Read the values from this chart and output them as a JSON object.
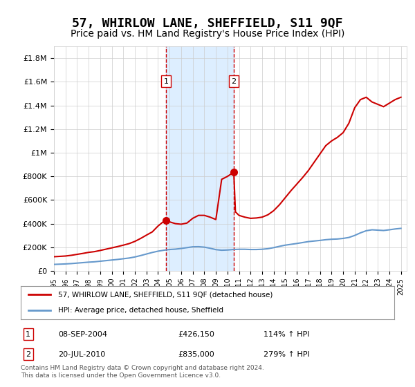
{
  "title": "57, WHIRLOW LANE, SHEFFIELD, S11 9QF",
  "subtitle": "Price paid vs. HM Land Registry's House Price Index (HPI)",
  "title_fontsize": 13,
  "subtitle_fontsize": 10,
  "x_start": 1995.0,
  "x_end": 2025.5,
  "y_min": 0,
  "y_max": 1900000,
  "y_ticks": [
    0,
    200000,
    400000,
    600000,
    800000,
    1000000,
    1200000,
    1400000,
    1600000,
    1800000
  ],
  "y_tick_labels": [
    "£0",
    "£200K",
    "£400K",
    "£600K",
    "£800K",
    "£1M",
    "£1.2M",
    "£1.4M",
    "£1.6M",
    "£1.8M"
  ],
  "x_ticks": [
    1995,
    1996,
    1997,
    1998,
    1999,
    2000,
    2001,
    2002,
    2003,
    2004,
    2005,
    2006,
    2007,
    2008,
    2009,
    2010,
    2011,
    2012,
    2013,
    2014,
    2015,
    2016,
    2017,
    2018,
    2019,
    2020,
    2021,
    2022,
    2023,
    2024,
    2025
  ],
  "sale1_x": 2004.69,
  "sale1_y": 426150,
  "sale1_label": "1",
  "sale1_date": "08-SEP-2004",
  "sale1_price": "£426,150",
  "sale1_hpi": "114% ↑ HPI",
  "sale2_x": 2010.55,
  "sale2_y": 835000,
  "sale2_label": "2",
  "sale2_date": "20-JUL-2010",
  "sale2_price": "£835,000",
  "sale2_hpi": "279% ↑ HPI",
  "line_color_red": "#cc0000",
  "line_color_blue": "#6699cc",
  "shade_color": "#ddeeff",
  "grid_color": "#cccccc",
  "background_color": "#ffffff",
  "legend_line1": "57, WHIRLOW LANE, SHEFFIELD, S11 9QF (detached house)",
  "legend_line2": "HPI: Average price, detached house, Sheffield",
  "footnote": "Contains HM Land Registry data © Crown copyright and database right 2024.\nThis data is licensed under the Open Government Licence v3.0.",
  "hpi_x": [
    1995.0,
    1995.5,
    1996.0,
    1996.5,
    1997.0,
    1997.5,
    1998.0,
    1998.5,
    1999.0,
    1999.5,
    2000.0,
    2000.5,
    2001.0,
    2001.5,
    2002.0,
    2002.5,
    2003.0,
    2003.5,
    2004.0,
    2004.5,
    2005.0,
    2005.5,
    2006.0,
    2006.5,
    2007.0,
    2007.5,
    2008.0,
    2008.5,
    2009.0,
    2009.5,
    2010.0,
    2010.5,
    2011.0,
    2011.5,
    2012.0,
    2012.5,
    2013.0,
    2013.5,
    2014.0,
    2014.5,
    2015.0,
    2015.5,
    2016.0,
    2016.5,
    2017.0,
    2017.5,
    2018.0,
    2018.5,
    2019.0,
    2019.5,
    2020.0,
    2020.5,
    2021.0,
    2021.5,
    2022.0,
    2022.5,
    2023.0,
    2023.5,
    2024.0,
    2024.5,
    2025.0
  ],
  "hpi_y": [
    55000,
    57000,
    59000,
    62000,
    66000,
    70000,
    74000,
    77000,
    82000,
    87000,
    92000,
    97000,
    103000,
    109000,
    118000,
    130000,
    143000,
    156000,
    167000,
    175000,
    181000,
    184000,
    190000,
    197000,
    204000,
    205000,
    201000,
    192000,
    180000,
    175000,
    177000,
    181000,
    183000,
    183000,
    181000,
    181000,
    183000,
    188000,
    197000,
    208000,
    218000,
    225000,
    232000,
    240000,
    248000,
    253000,
    258000,
    264000,
    268000,
    270000,
    275000,
    283000,
    300000,
    322000,
    340000,
    348000,
    345000,
    342000,
    348000,
    355000,
    360000
  ],
  "property_x": [
    1995.0,
    1995.5,
    1996.0,
    1996.5,
    1997.0,
    1997.5,
    1998.0,
    1998.5,
    1999.0,
    1999.5,
    2000.0,
    2000.5,
    2001.0,
    2001.5,
    2002.0,
    2002.5,
    2003.0,
    2003.5,
    2004.0,
    2004.5,
    2004.69,
    2005.0,
    2005.5,
    2006.0,
    2006.5,
    2007.0,
    2007.5,
    2008.0,
    2008.5,
    2009.0,
    2009.5,
    2010.0,
    2010.55,
    2010.69,
    2011.0,
    2011.5,
    2012.0,
    2012.5,
    2013.0,
    2013.5,
    2014.0,
    2014.5,
    2015.0,
    2015.5,
    2016.0,
    2016.5,
    2017.0,
    2017.5,
    2018.0,
    2018.5,
    2019.0,
    2019.5,
    2020.0,
    2020.5,
    2021.0,
    2021.5,
    2022.0,
    2022.5,
    2023.0,
    2023.5,
    2024.0,
    2024.5,
    2025.0
  ],
  "property_y": [
    120000,
    123000,
    126000,
    132000,
    140000,
    148000,
    157000,
    163000,
    173000,
    184000,
    195000,
    206000,
    218000,
    231000,
    250000,
    275000,
    303000,
    330000,
    380000,
    420000,
    426150,
    415000,
    400000,
    395000,
    405000,
    445000,
    470000,
    470000,
    455000,
    435000,
    775000,
    800000,
    835000,
    500000,
    470000,
    455000,
    445000,
    448000,
    455000,
    475000,
    510000,
    560000,
    620000,
    680000,
    735000,
    790000,
    850000,
    920000,
    990000,
    1060000,
    1100000,
    1130000,
    1170000,
    1250000,
    1380000,
    1450000,
    1470000,
    1430000,
    1410000,
    1390000,
    1420000,
    1450000,
    1470000
  ]
}
